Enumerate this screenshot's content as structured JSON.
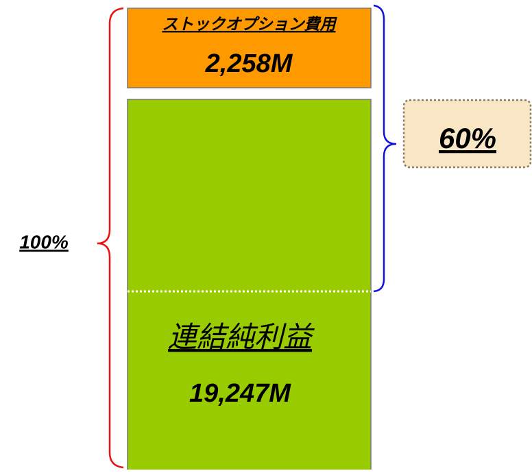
{
  "top_box": {
    "label": "ストックオプション費用",
    "amount": "2,258M"
  },
  "bottom_box": {
    "label": "連結純利益",
    "amount": "19,247M"
  },
  "left_brace": {
    "label": "100%"
  },
  "right_brace": {
    "label": "60%"
  }
}
